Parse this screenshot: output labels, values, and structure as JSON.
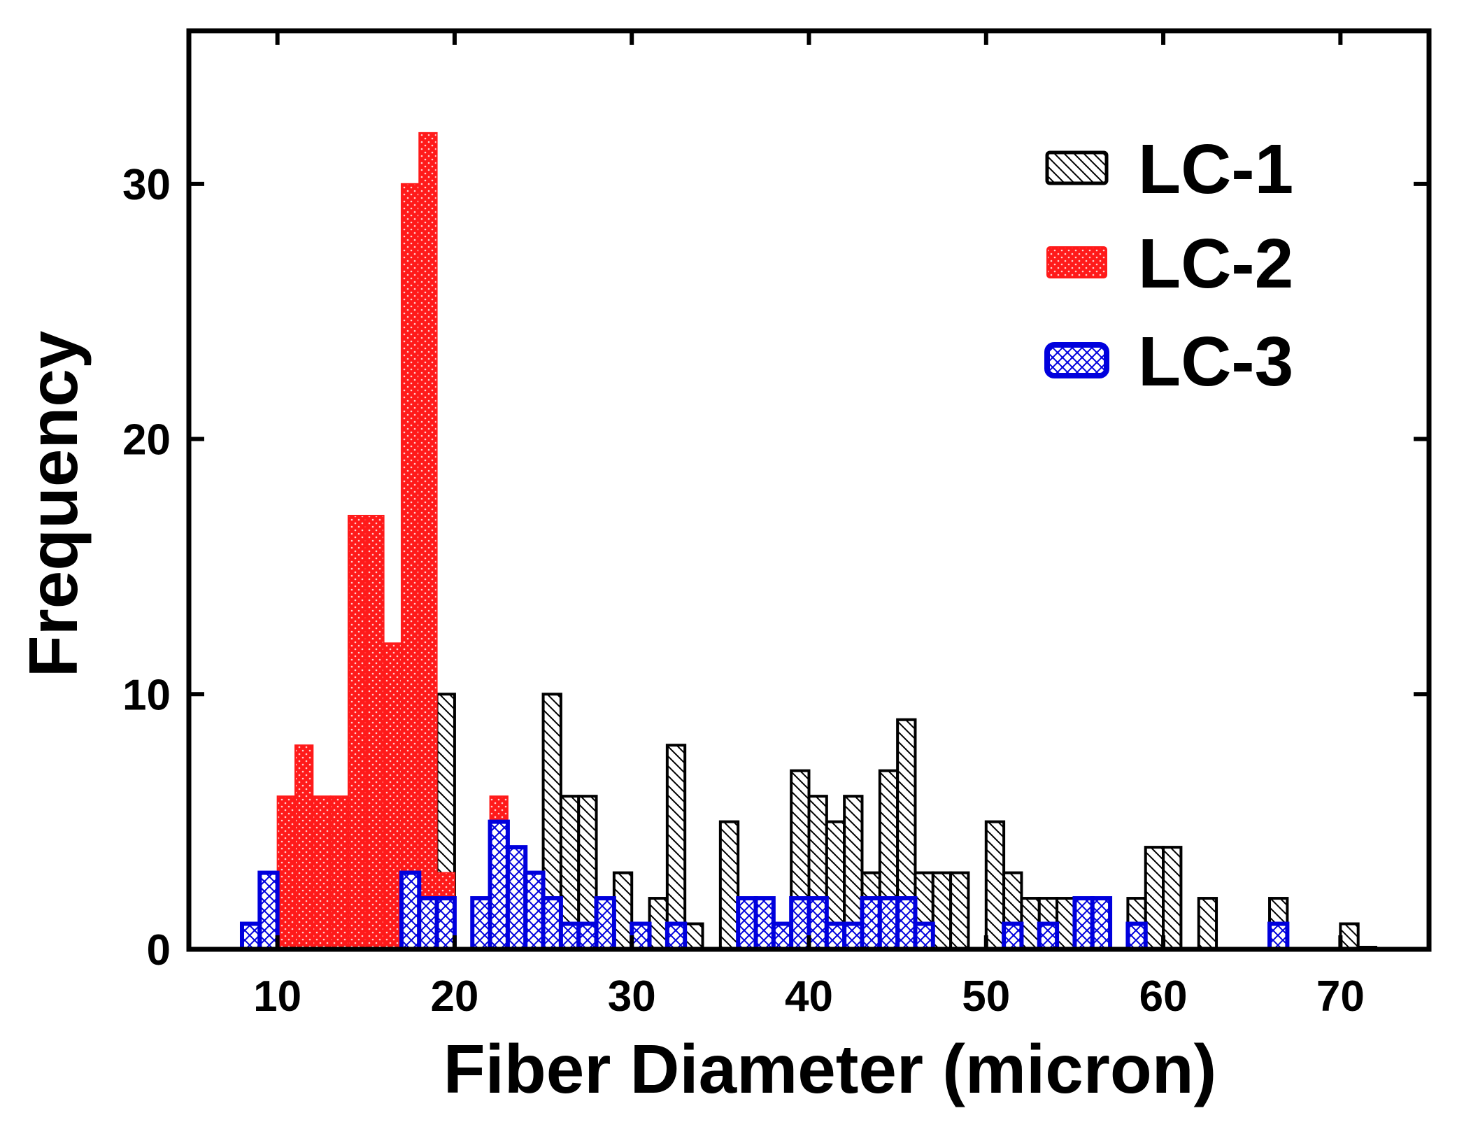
{
  "chart_data": {
    "type": "bar",
    "title": "",
    "xlabel": "Fiber Diameter (micron)",
    "ylabel": "Frequency",
    "xlim": [
      5,
      75
    ],
    "ylim": [
      0,
      36
    ],
    "bin_width": 1,
    "x_ticks": [
      10,
      20,
      30,
      40,
      50,
      60,
      70
    ],
    "y_ticks": [
      0,
      10,
      20,
      30
    ],
    "legend_position": "top-right",
    "series": [
      {
        "name": "LC-1",
        "pattern": "diagonal-hatch",
        "color": "#000000",
        "x": [
          18,
          19,
          25,
          26,
          27,
          29,
          31,
          32,
          33,
          35,
          36,
          37,
          39,
          40,
          41,
          42,
          43,
          44,
          45,
          46,
          47,
          48,
          50,
          51,
          52,
          53,
          54,
          55,
          56,
          58,
          59,
          60,
          62,
          66,
          70,
          71
        ],
        "values": [
          8,
          10,
          10,
          6,
          6,
          3,
          2,
          8,
          1,
          5,
          2,
          2,
          7,
          6,
          5,
          6,
          3,
          7,
          9,
          3,
          3,
          3,
          5,
          3,
          2,
          2,
          2,
          2,
          2,
          2,
          4,
          4,
          2,
          2,
          1,
          0
        ]
      },
      {
        "name": "LC-2",
        "pattern": "dotted-fill",
        "color": "#ff1a1a",
        "x": [
          10,
          11,
          12,
          13,
          14,
          15,
          16,
          17,
          18,
          19,
          22
        ],
        "values": [
          6,
          8,
          6,
          6,
          17,
          17,
          12,
          30,
          32,
          3,
          6
        ]
      },
      {
        "name": "LC-3",
        "pattern": "cross-hatch",
        "color": "#0000dd",
        "x": [
          8,
          9,
          17,
          18,
          19,
          21,
          22,
          23,
          24,
          25,
          26,
          27,
          28,
          30,
          32,
          36,
          37,
          38,
          39,
          40,
          41,
          42,
          43,
          44,
          45,
          46,
          51,
          53,
          55,
          56,
          58,
          66
        ],
        "values": [
          1,
          3,
          3,
          2,
          2,
          2,
          5,
          4,
          3,
          2,
          1,
          1,
          2,
          1,
          1,
          2,
          2,
          1,
          2,
          2,
          1,
          1,
          2,
          2,
          2,
          1,
          1,
          1,
          2,
          2,
          1,
          1
        ]
      }
    ]
  }
}
